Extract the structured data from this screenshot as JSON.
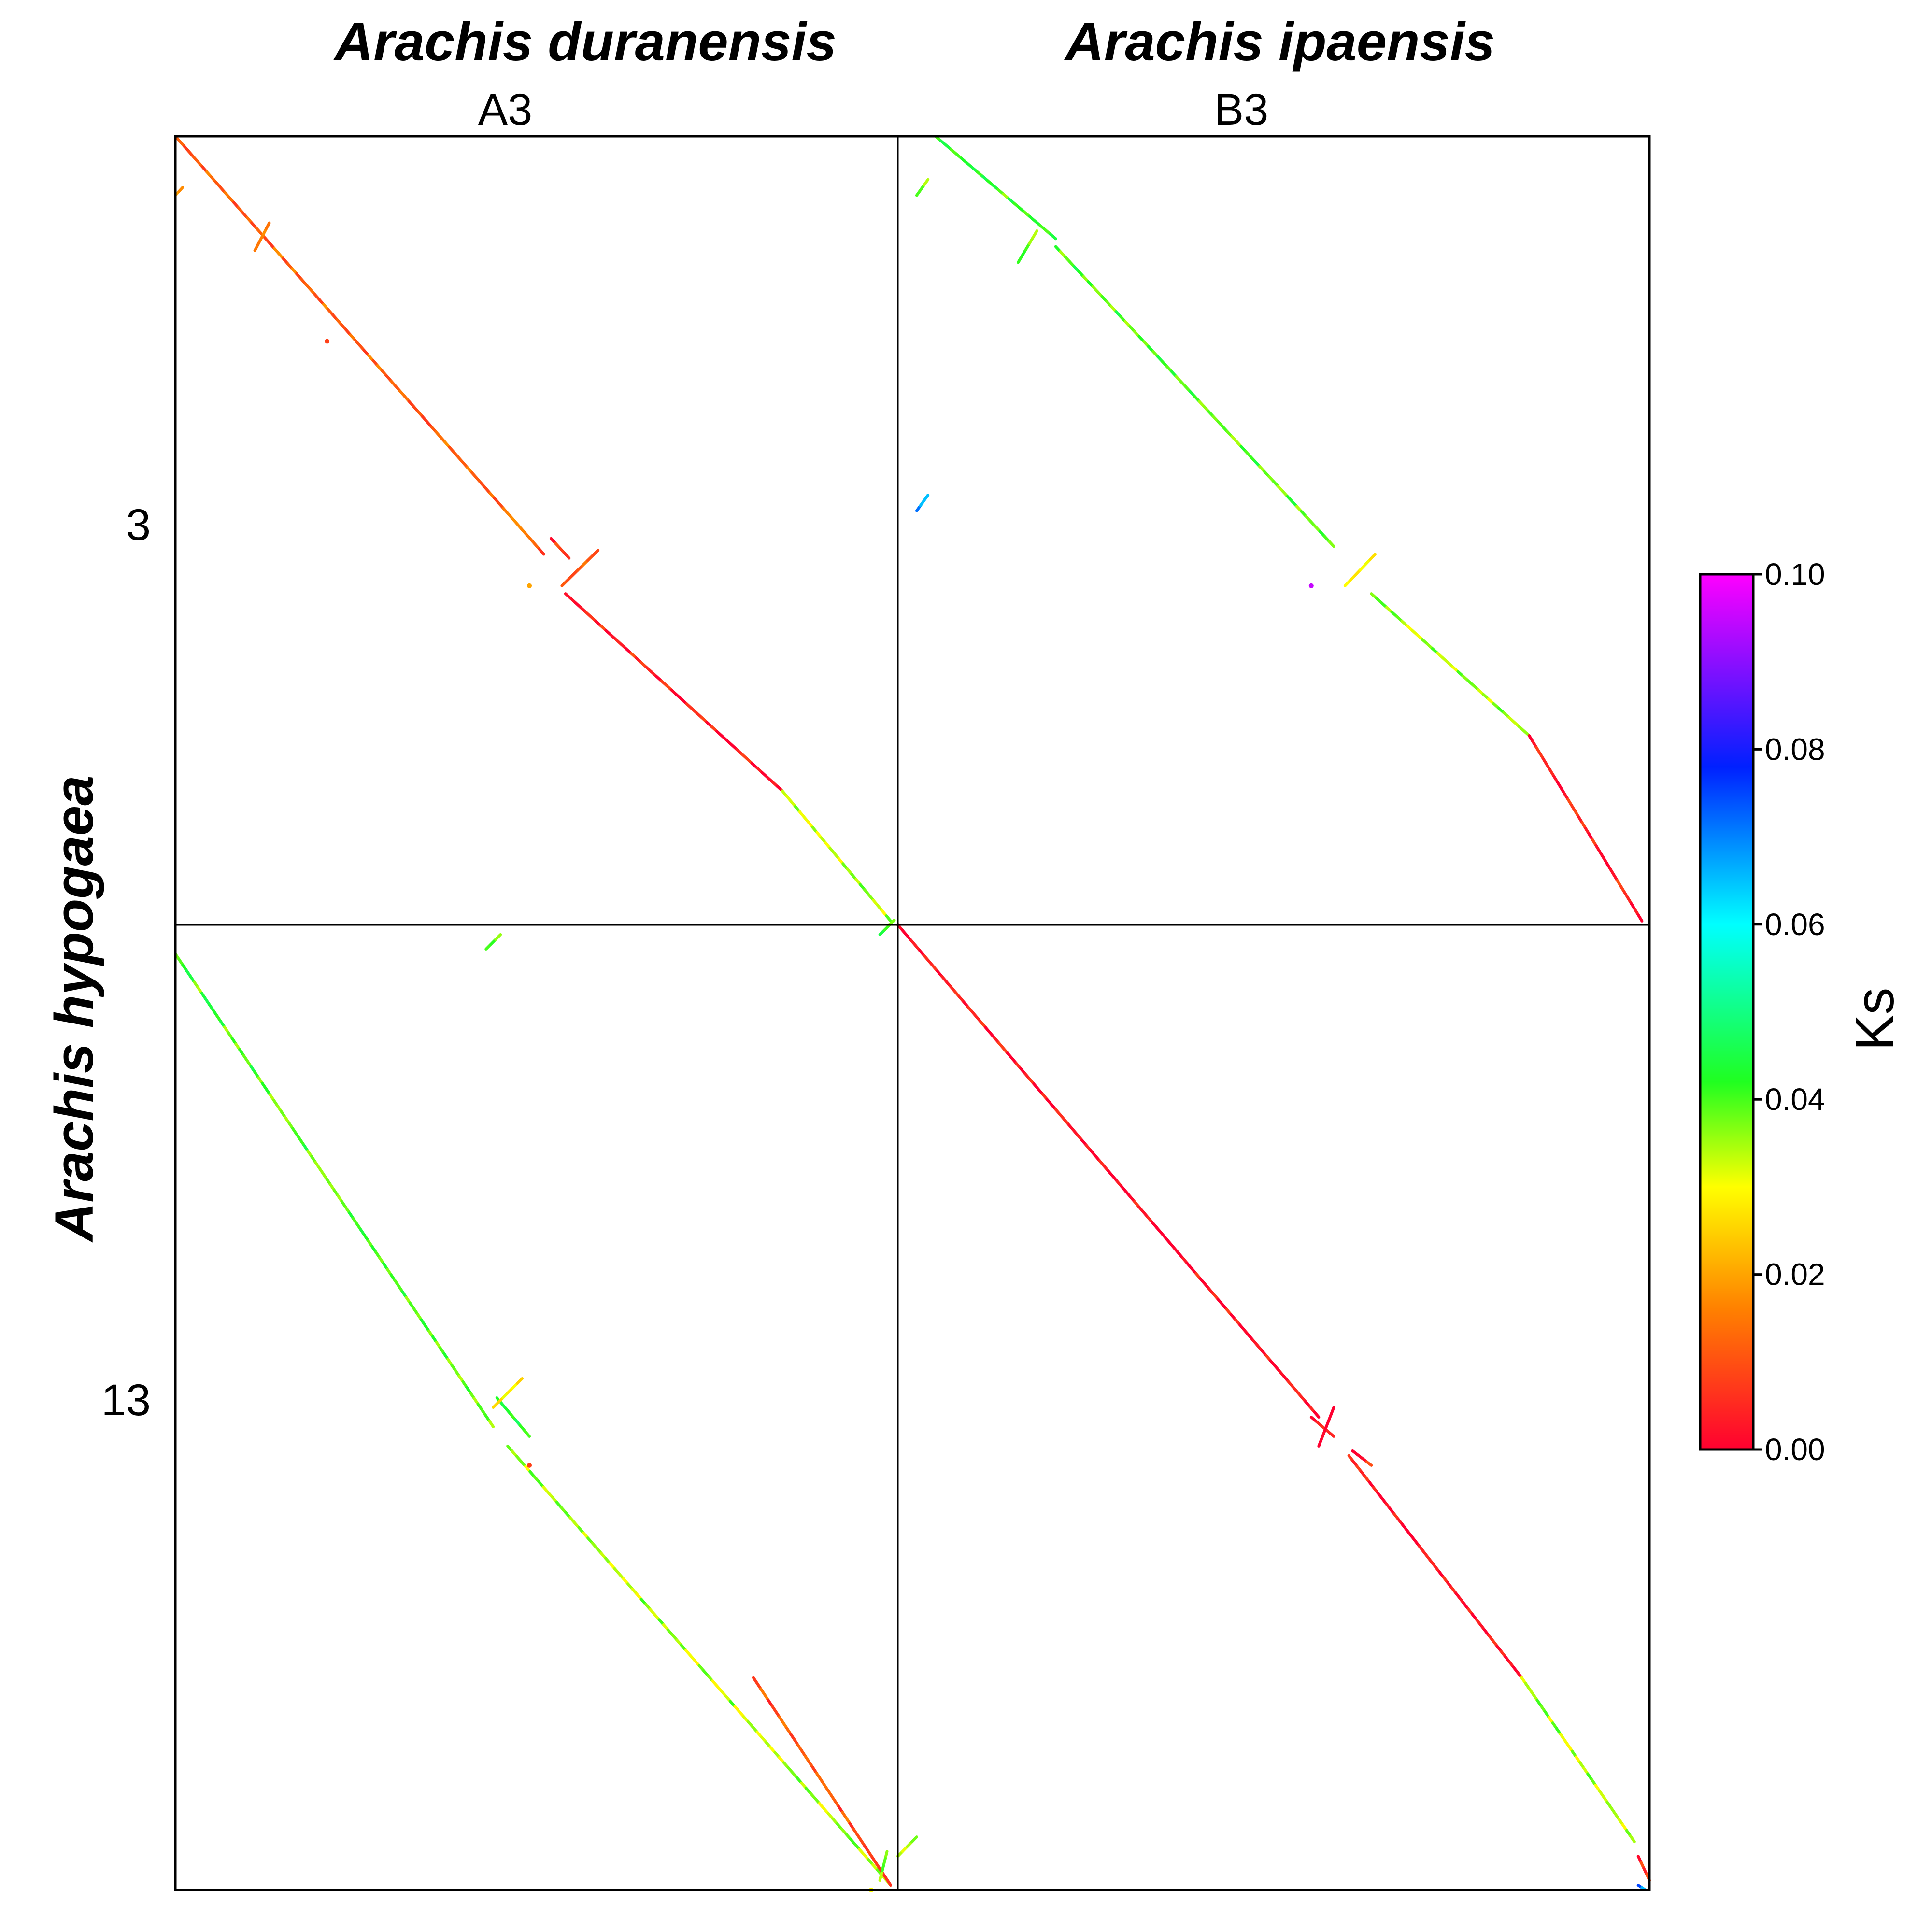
{
  "chart_data": {
    "type": "scatter",
    "title": "",
    "x_species": [
      "Arachis duranensis",
      "Arachis ipaensis"
    ],
    "x_chromosomes": [
      "A3",
      "B3"
    ],
    "y_species": "Arachis hypogaea",
    "y_chromosomes": [
      "3",
      "13"
    ],
    "colorbar": {
      "label": "Ks",
      "range": [
        0.0,
        0.1
      ],
      "ticks": [
        "0.00",
        "0.02",
        "0.04",
        "0.06",
        "0.08",
        "0.10"
      ],
      "colormap": "gist_rainbow (red to magenta)",
      "stops": [
        "#ff0030",
        "#ff8000",
        "#ffff00",
        "#20ff20",
        "#00ffff",
        "#0020ff",
        "#ff00ff"
      ]
    },
    "panels": [
      {
        "x_chrom": "A3",
        "y_chrom": "3",
        "orientation": "inverted",
        "dominant_ks": "low (red-orange, ~0.00-0.02)",
        "segments": [
          {
            "x0": 0.0,
            "y0": 0.0,
            "x1": 0.51,
            "y1": 0.53,
            "ks": 0.012
          },
          {
            "x0": 0.54,
            "y0": 0.58,
            "x1": 0.84,
            "y1": 0.83,
            "ks": 0.004
          },
          {
            "x0": 0.84,
            "y0": 0.83,
            "x1": 0.99,
            "y1": 0.995,
            "ks": 0.035
          },
          {
            "x0": 0.11,
            "y0": 0.145,
            "x1": 0.13,
            "y1": 0.11,
            "ks": 0.02
          },
          {
            "x0": 0.535,
            "y0": 0.57,
            "x1": 0.585,
            "y1": 0.525,
            "ks": 0.01
          },
          {
            "x0": 0.52,
            "y0": 0.51,
            "x1": 0.545,
            "y1": 0.535,
            "ks": 0.006
          },
          {
            "x0": 0.0,
            "y0": 0.075,
            "x1": 0.01,
            "y1": 0.065,
            "ks": 0.015
          }
        ],
        "points": [
          {
            "x": 0.49,
            "y": 0.57,
            "ks": 0.02
          },
          {
            "x": 0.21,
            "y": 0.26,
            "ks": 0.008
          }
        ]
      },
      {
        "x_chrom": "B3",
        "y_chrom": "3",
        "orientation": "inverted",
        "dominant_ks": "mid (green, ~0.03-0.05), red near end",
        "segments": [
          {
            "x0": 0.05,
            "y0": 0.0,
            "x1": 0.21,
            "y1": 0.13,
            "ks": 0.04
          },
          {
            "x0": 0.21,
            "y0": 0.14,
            "x1": 0.58,
            "y1": 0.52,
            "ks": 0.04
          },
          {
            "x0": 0.63,
            "y0": 0.58,
            "x1": 0.84,
            "y1": 0.76,
            "ks": 0.035
          },
          {
            "x0": 0.84,
            "y0": 0.76,
            "x1": 0.99,
            "y1": 0.995,
            "ks": 0.004
          },
          {
            "x0": 0.595,
            "y0": 0.57,
            "x1": 0.635,
            "y1": 0.53,
            "ks": 0.03
          },
          {
            "x0": 0.16,
            "y0": 0.16,
            "x1": 0.185,
            "y1": 0.12,
            "ks": 0.04
          },
          {
            "x0": 0.025,
            "y0": 0.075,
            "x1": 0.04,
            "y1": 0.055,
            "ks": 0.04
          },
          {
            "x0": 0.025,
            "y0": 0.475,
            "x1": 0.04,
            "y1": 0.455,
            "ks": 0.07
          }
        ],
        "points": [
          {
            "x": 0.55,
            "y": 0.57,
            "ks": 0.095
          }
        ]
      },
      {
        "x_chrom": "A3",
        "y_chrom": "13",
        "orientation": "inverted",
        "dominant_ks": "mid (green, ~0.03-0.05), red near end",
        "segments": [
          {
            "x0": 0.0,
            "y0": 0.03,
            "x1": 0.44,
            "y1": 0.52,
            "ks": 0.04
          },
          {
            "x0": 0.46,
            "y0": 0.54,
            "x1": 0.99,
            "y1": 0.995,
            "ks": 0.035
          },
          {
            "x0": 0.8,
            "y0": 0.78,
            "x1": 0.99,
            "y1": 0.995,
            "ks": 0.01
          },
          {
            "x0": 0.445,
            "y0": 0.49,
            "x1": 0.49,
            "y1": 0.53,
            "ks": 0.045
          },
          {
            "x0": 0.44,
            "y0": 0.5,
            "x1": 0.48,
            "y1": 0.47,
            "ks": 0.03
          },
          {
            "x0": 0.985,
            "y0": 0.96,
            "x1": 0.975,
            "y1": 0.99,
            "ks": 0.035
          },
          {
            "x0": 0.43,
            "y0": 0.025,
            "x1": 0.45,
            "y1": 0.01,
            "ks": 0.04
          },
          {
            "x0": 0.975,
            "y0": 0.01,
            "x1": 0.995,
            "y1": -0.005,
            "ks": 0.04
          }
        ],
        "points": [
          {
            "x": 0.49,
            "y": 0.56,
            "ks": 0.008
          },
          {
            "x": 0.963,
            "y": 1.0,
            "ks": 0.03
          }
        ]
      },
      {
        "x_chrom": "B3",
        "y_chrom": "13",
        "orientation": "inverted",
        "dominant_ks": "low (red, ~0.00)",
        "segments": [
          {
            "x0": 0.0,
            "y0": 0.0,
            "x1": 0.56,
            "y1": 0.51,
            "ks": 0.002
          },
          {
            "x0": 0.6,
            "y0": 0.55,
            "x1": 0.83,
            "y1": 0.78,
            "ks": 0.002
          },
          {
            "x0": 0.83,
            "y0": 0.78,
            "x1": 0.98,
            "y1": 0.95,
            "ks": 0.035
          },
          {
            "x0": 0.55,
            "y0": 0.51,
            "x1": 0.58,
            "y1": 0.53,
            "ks": 0.004
          },
          {
            "x0": 0.58,
            "y0": 0.5,
            "x1": 0.56,
            "y1": 0.54,
            "ks": 0.0
          },
          {
            "x0": 0.605,
            "y0": 0.545,
            "x1": 0.63,
            "y1": 0.56,
            "ks": 0.004
          },
          {
            "x0": 0.0,
            "y0": 0.965,
            "x1": 0.025,
            "y1": 0.945,
            "ks": 0.035
          },
          {
            "x0": 0.985,
            "y0": 0.965,
            "x1": 1.0,
            "y1": 0.99,
            "ks": 0.004
          },
          {
            "x0": 0.985,
            "y0": 0.995,
            "x1": 0.995,
            "y1": 1.0,
            "ks": 0.07
          }
        ],
        "points": []
      }
    ]
  }
}
